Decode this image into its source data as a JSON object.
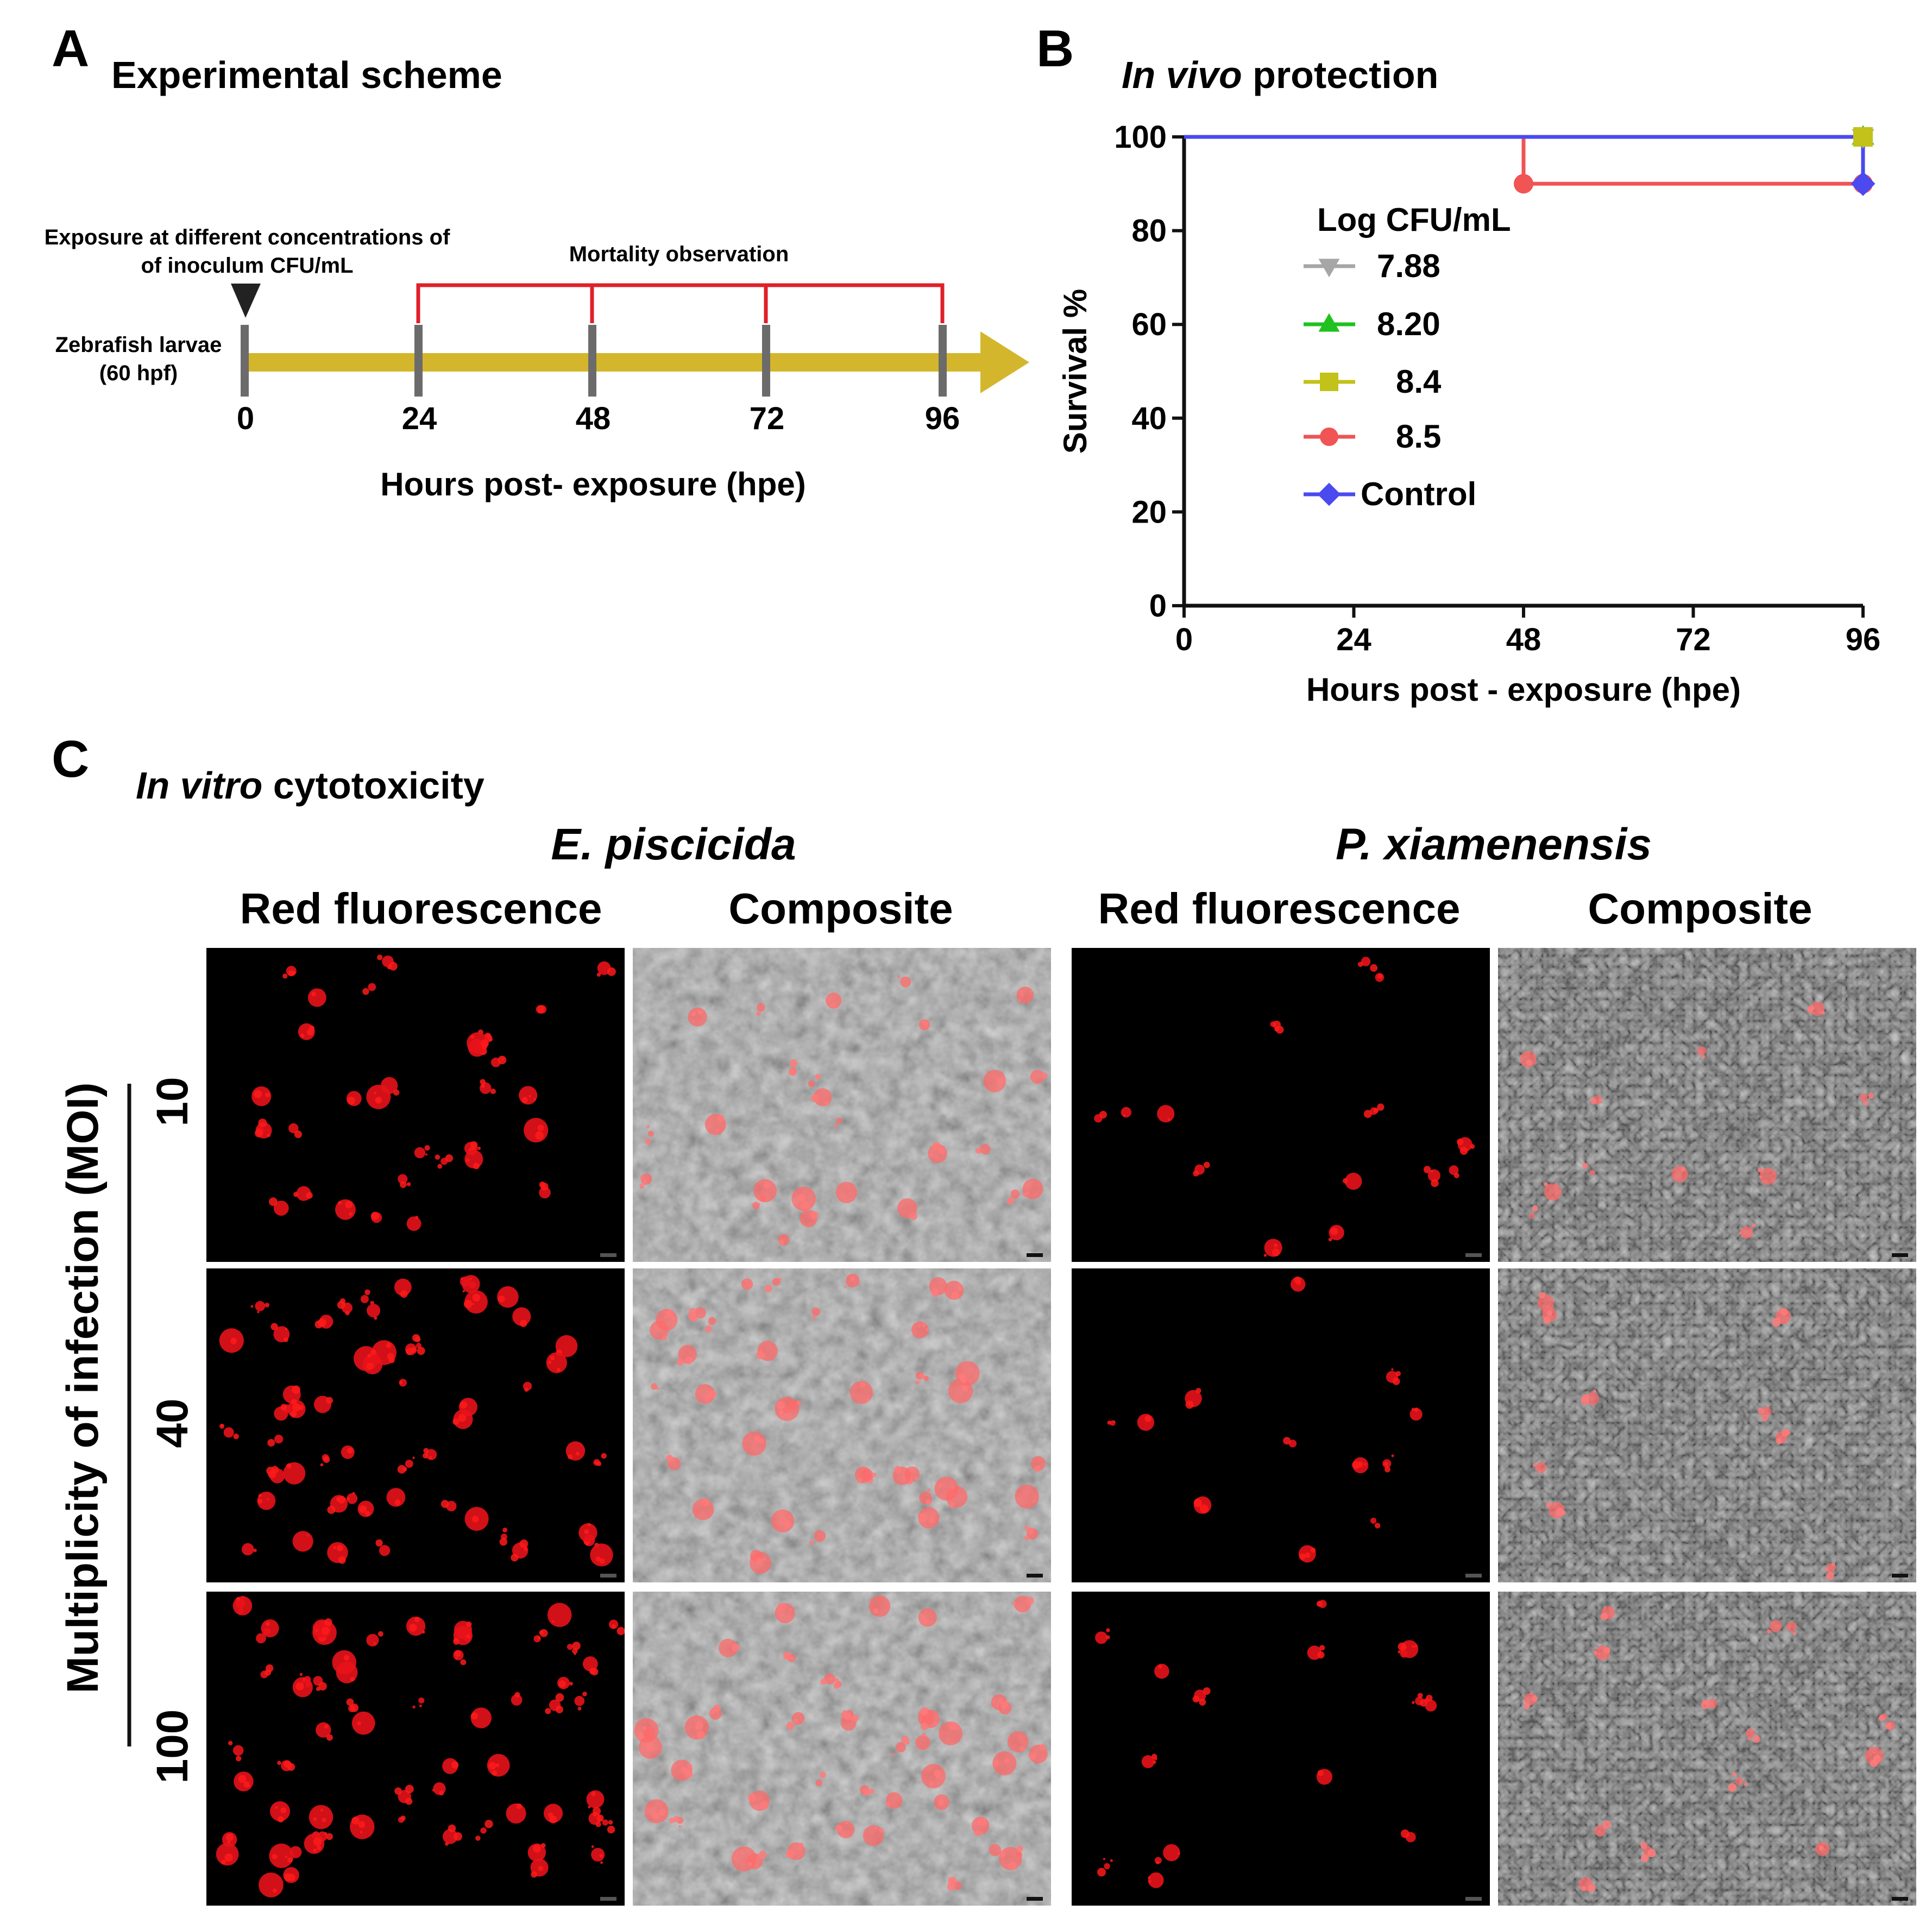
{
  "panel_a": {
    "letter": "A",
    "title": "Experimental scheme",
    "exposure_line1": "Exposure at different concentrations of",
    "exposure_line2": "of inoculum CFU/mL",
    "mortality": "Mortality observation",
    "larvae_line1": "Zebrafish larvae",
    "larvae_line2": "(60 hpf)",
    "ticks": [
      "0",
      "24",
      "48",
      "72",
      "96"
    ],
    "xlabel": "Hours post- exposure (hpe)",
    "arrow_color": "#d4b62c",
    "bracket_color": "#e0202a"
  },
  "panel_b": {
    "letter": "B",
    "title_italic": "In vivo",
    "title_rest": " protection",
    "legend_title": "Log CFU/mL"
  },
  "chart_data": {
    "type": "line",
    "title": "In vivo protection",
    "xlabel": "Hours post - exposure (hpe)",
    "ylabel": "Survival %",
    "x_ticks": [
      0,
      24,
      48,
      72,
      96
    ],
    "y_ticks": [
      0,
      20,
      40,
      60,
      80,
      100
    ],
    "xlim": [
      0,
      96
    ],
    "ylim": [
      0,
      100
    ],
    "step": true,
    "legend_title": "Log CFU/mL",
    "series": [
      {
        "name": "7.88",
        "color": "#a6a6a6",
        "marker": "triangle-down",
        "x": [
          0,
          96
        ],
        "y": [
          100,
          100
        ]
      },
      {
        "name": "8.20",
        "color": "#1fc21f",
        "marker": "triangle-up",
        "x": [
          0,
          96
        ],
        "y": [
          100,
          100
        ]
      },
      {
        "name": "8.4",
        "color": "#c2c21a",
        "marker": "square",
        "x": [
          0,
          96
        ],
        "y": [
          100,
          100
        ]
      },
      {
        "name": "8.5",
        "color": "#f05454",
        "marker": "circle",
        "x": [
          0,
          48,
          96
        ],
        "y": [
          100,
          90,
          90
        ]
      },
      {
        "name": "Control",
        "color": "#4a4af0",
        "marker": "diamond",
        "x": [
          0,
          96
        ],
        "y": [
          100,
          90
        ]
      }
    ]
  },
  "panel_c": {
    "letter": "C",
    "title_italic": "In vitro",
    "title_rest": " cytotoxicity",
    "species": [
      "E. piscicida",
      "P. xiamenensis"
    ],
    "columns": [
      "Red fluorescence",
      "Composite",
      "Red fluorescence",
      "Composite"
    ],
    "moi_label": "Multiplicity of infection (MOI)",
    "moi_values": [
      "10",
      "40",
      "100"
    ]
  }
}
